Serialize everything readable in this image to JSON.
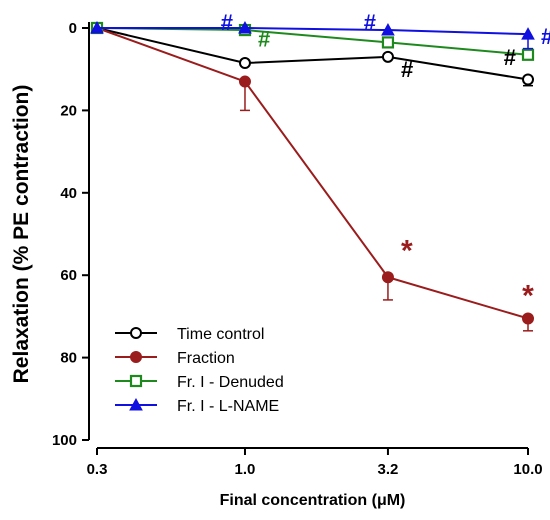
{
  "chart_data": {
    "type": "line",
    "title": "",
    "xlabel": "Final concentration (μM)",
    "ylabel": "Relaxation (% PE contraction)",
    "x_scale": "log",
    "x_ticks": [
      0.3,
      1.0,
      3.2,
      10.0
    ],
    "x_tick_labels": [
      "0.3",
      "1.0",
      "3.2",
      "10.0"
    ],
    "ylim": [
      0,
      100
    ],
    "y_inverted": true,
    "y_ticks": [
      0,
      20,
      40,
      60,
      80,
      100
    ],
    "y_tick_labels": [
      "0",
      "20",
      "40",
      "60",
      "80",
      "100"
    ],
    "grid": false,
    "legend_position": "bottom-left",
    "series": [
      {
        "name": "Time control",
        "color": "#000000",
        "marker": "circle-open",
        "x": [
          0.3,
          1.0,
          3.2,
          10.0
        ],
        "y": [
          0,
          8.5,
          7,
          12.5
        ],
        "err": [
          0,
          0,
          0,
          1.5
        ]
      },
      {
        "name": "Fraction",
        "color": "#9b1c1c",
        "marker": "circle-filled",
        "x": [
          0.3,
          1.0,
          3.2,
          10.0
        ],
        "y": [
          0,
          13,
          60.5,
          70.5
        ],
        "err": [
          0,
          7,
          5.5,
          3
        ]
      },
      {
        "name": "Fr. I - Denuded",
        "color": "#1e8a1e",
        "marker": "square-open",
        "x": [
          0.3,
          1.0,
          3.2,
          10.0
        ],
        "y": [
          0,
          0.5,
          3.5,
          6.5
        ],
        "err": [
          0,
          0,
          0,
          0
        ]
      },
      {
        "name": "Fr. I - L-NAME",
        "color": "#1010e0",
        "marker": "triangle-filled",
        "x": [
          0.3,
          1.0,
          3.2,
          10.0
        ],
        "y": [
          0,
          0,
          0.5,
          1.5
        ],
        "err": [
          0,
          0,
          0,
          3.5
        ]
      }
    ],
    "annotations": [
      {
        "text": "#",
        "series": "Fr. I - L-NAME",
        "x": 1.0,
        "y": -1.5,
        "position": "left"
      },
      {
        "text": "#",
        "series": "Fr. I - Denuded",
        "x": 1.0,
        "y": 2.5,
        "position": "right"
      },
      {
        "text": "#",
        "series": "Fr. I - L-NAME",
        "x": 3.2,
        "y": -1.5,
        "position": "left"
      },
      {
        "text": "#",
        "series": "Time control",
        "x": 3.2,
        "y": 10,
        "position": "right"
      },
      {
        "text": "#",
        "series": "Fr. I - L-NAME",
        "x": 10.0,
        "y": 2,
        "position": "right"
      },
      {
        "text": "#",
        "series": "Time control",
        "x": 10.0,
        "y": 7,
        "position": "left"
      },
      {
        "text": "*",
        "series": "Fraction",
        "x": 3.2,
        "y": 53,
        "position": "right"
      },
      {
        "text": "*",
        "series": "Fraction",
        "x": 10.0,
        "y": 64,
        "position": "center"
      }
    ]
  }
}
